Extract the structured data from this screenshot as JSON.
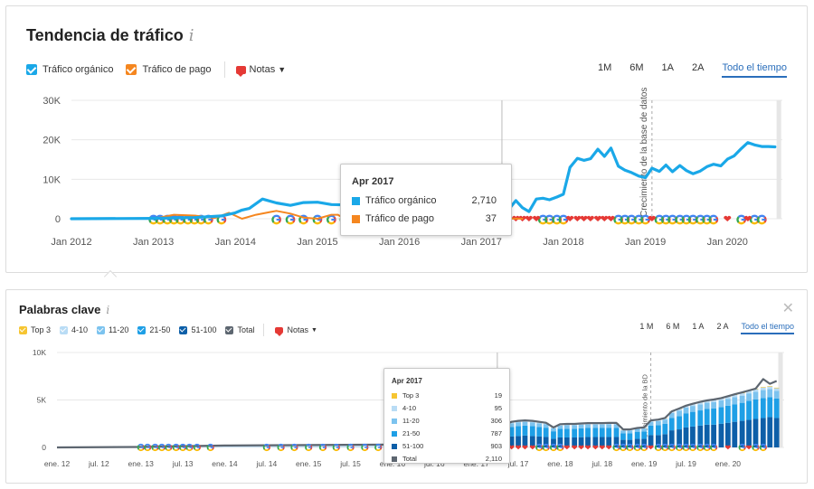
{
  "traffic": {
    "title": "Tendencia de tráfico",
    "info_icon": "info-icon",
    "legend": [
      {
        "label": "Tráfico orgánico",
        "color": "#1aa8e8"
      },
      {
        "label": "Tráfico de pago",
        "color": "#f5861f"
      }
    ],
    "notes_label": "Notas",
    "ranges": [
      "1M",
      "6M",
      "1A",
      "2A",
      "Todo el tiempo"
    ],
    "active_range": "Todo el tiempo",
    "vline_annotation": "Crecimiento de la base de datos",
    "tooltip": {
      "date": "Apr 2017",
      "rows": [
        {
          "label": "Tráfico orgánico",
          "value": "2,710",
          "color": "#1aa8e8"
        },
        {
          "label": "Tráfico de pago",
          "value": "37",
          "color": "#f5861f"
        }
      ]
    }
  },
  "keywords": {
    "title": "Palabras clave",
    "info_icon": "info-icon",
    "close_icon": "close-icon",
    "legend": [
      {
        "label": "Top 3",
        "color": "#f6c531"
      },
      {
        "label": "4-10",
        "color": "#b9dcf5"
      },
      {
        "label": "11-20",
        "color": "#7cc3ef"
      },
      {
        "label": "21-50",
        "color": "#1e9fe6"
      },
      {
        "label": "51-100",
        "color": "#0d5fa8"
      },
      {
        "label": "Total",
        "color": "#5d6670"
      }
    ],
    "notes_label": "Notas",
    "ranges": [
      "1 M",
      "6 M",
      "1 A",
      "2 A",
      "Todo el tiempo"
    ],
    "active_range": "Todo el tiempo",
    "vline_annotation": "Crecimiento de la BD",
    "tooltip": {
      "date": "Apr 2017",
      "rows": [
        {
          "label": "Top 3",
          "value": "19",
          "color": "#f6c531"
        },
        {
          "label": "4-10",
          "value": "95",
          "color": "#b9dcf5"
        },
        {
          "label": "11-20",
          "value": "306",
          "color": "#7cc3ef"
        },
        {
          "label": "21-50",
          "value": "787",
          "color": "#1e9fe6"
        },
        {
          "label": "51-100",
          "value": "903",
          "color": "#0d5fa8"
        },
        {
          "label": "Total",
          "value": "2,110",
          "color": "#5d6670"
        }
      ]
    }
  },
  "chart_data": [
    {
      "type": "line",
      "title": "Tendencia de tráfico",
      "x_ticks": [
        "Jan 2012",
        "Jan 2013",
        "Jan 2014",
        "Jan 2015",
        "Jan 2016",
        "Jan 2017",
        "Jan 2018",
        "Jan 2019",
        "Jan 2020"
      ],
      "y_ticks": [
        "0",
        "10K",
        "20K",
        "30K"
      ],
      "ylim": [
        0,
        30000
      ],
      "xlim": [
        2012.0,
        2020.67
      ],
      "grid": true,
      "legend_placement": "top-left",
      "series": [
        {
          "name": "Tráfico orgánico",
          "color": "#1aa8e8",
          "x": [
            2012.0,
            2013.0,
            2013.5,
            2013.83,
            2014.0,
            2014.08,
            2014.17,
            2014.33,
            2014.5,
            2014.67,
            2014.83,
            2015.0,
            2015.17,
            2015.33,
            2015.5,
            2015.67,
            2015.83,
            2016.0,
            2016.17,
            2016.25,
            2016.33,
            2016.5,
            2016.67,
            2016.83,
            2017.0,
            2017.17,
            2017.25,
            2017.33,
            2017.42,
            2017.5,
            2017.58,
            2017.67,
            2017.75,
            2017.83,
            2017.92,
            2018.0,
            2018.08,
            2018.17,
            2018.25,
            2018.33,
            2018.42,
            2018.5,
            2018.58,
            2018.67,
            2018.75,
            2018.83,
            2018.92,
            2019.0,
            2019.08,
            2019.17,
            2019.25,
            2019.33,
            2019.42,
            2019.5,
            2019.58,
            2019.67,
            2019.75,
            2019.83,
            2019.92,
            2020.0,
            2020.08,
            2020.17,
            2020.25,
            2020.33,
            2020.42,
            2020.5,
            2020.58
          ],
          "values": [
            0,
            100,
            300,
            700,
            1500,
            2200,
            2600,
            5000,
            4000,
            3400,
            4100,
            4200,
            3600,
            3500,
            4200,
            3300,
            3100,
            3200,
            2600,
            2300,
            2700,
            2900,
            2800,
            2600,
            2500,
            2100,
            2710,
            2300,
            4600,
            2800,
            1800,
            5000,
            5200,
            4800,
            5500,
            6200,
            13000,
            15300,
            14800,
            15200,
            17600,
            15800,
            17900,
            13300,
            12300,
            11700,
            10800,
            10400,
            12800,
            12000,
            13600,
            11900,
            13500,
            12200,
            11400,
            12100,
            13200,
            13800,
            13400,
            15100,
            15900,
            17800,
            19300,
            18700,
            18300,
            18300,
            18200
          ]
        },
        {
          "name": "Tráfico de pago",
          "color": "#f5861f",
          "x": [
            2013.0,
            2013.25,
            2013.5,
            2013.75,
            2013.92,
            2014.08,
            2014.25,
            2014.42,
            2014.5,
            2014.67,
            2014.83,
            2015.0,
            2015.17,
            2015.25,
            2015.33,
            2015.42,
            2015.5,
            2015.58,
            2015.75,
            2015.92,
            2016.08,
            2016.25,
            2016.5,
            2016.75,
            2017.0,
            2017.25,
            2017.5
          ],
          "values": [
            0,
            1000,
            800,
            200,
            1500,
            0,
            1000,
            1700,
            2000,
            1300,
            300,
            0,
            1000,
            1000,
            0,
            1000,
            900,
            100,
            300,
            1100,
            200,
            0,
            0,
            0,
            0,
            37,
            0
          ]
        }
      ]
    },
    {
      "type": "bar",
      "stacked": true,
      "title": "Palabras clave",
      "x_ticks": [
        "ene. 12",
        "jul. 12",
        "ene. 13",
        "jul. 13",
        "ene. 14",
        "jul. 14",
        "ene. 15",
        "jul. 15",
        "ene. 16",
        "jul. 16",
        "ene. 17",
        "jul. 17",
        "ene. 18",
        "jul. 18",
        "ene. 19",
        "jul. 19",
        "ene. 20"
      ],
      "y_ticks": [
        "0",
        "5K",
        "10K"
      ],
      "ylim": [
        0,
        10000
      ],
      "xlim": [
        2012.0,
        2020.67
      ],
      "grid": true,
      "legend_placement": "top-left",
      "x": [
        2017.25,
        2017.33,
        2017.42,
        2017.5,
        2017.58,
        2017.67,
        2017.75,
        2017.83,
        2017.92,
        2018.0,
        2018.08,
        2018.17,
        2018.25,
        2018.33,
        2018.42,
        2018.5,
        2018.58,
        2018.67,
        2018.75,
        2018.83,
        2018.92,
        2019.0,
        2019.08,
        2019.17,
        2019.25,
        2019.33,
        2019.42,
        2019.5,
        2019.58,
        2019.67,
        2019.75,
        2019.83,
        2019.92,
        2020.0,
        2020.08,
        2020.17,
        2020.25,
        2020.33,
        2020.42,
        2020.5,
        2020.58
      ],
      "series": [
        {
          "name": "51-100",
          "color": "#0d5fa8",
          "values": [
            903,
            1000,
            1150,
            1200,
            1250,
            1200,
            1150,
            1100,
            900,
            1050,
            1050,
            1050,
            1080,
            1100,
            1100,
            1100,
            1100,
            1100,
            800,
            800,
            900,
            900,
            1300,
            1300,
            1400,
            1800,
            1900,
            2100,
            2200,
            2300,
            2400,
            2400,
            2500,
            2600,
            2700,
            2800,
            2900,
            3000,
            3100,
            3200,
            3100
          ]
        },
        {
          "name": "21-50",
          "color": "#1e9fe6",
          "values": [
            787,
            900,
            1000,
            1050,
            1050,
            1050,
            1000,
            980,
            800,
            900,
            920,
            920,
            930,
            950,
            950,
            950,
            950,
            950,
            700,
            700,
            750,
            780,
            1000,
            1050,
            1100,
            1300,
            1400,
            1500,
            1550,
            1600,
            1650,
            1700,
            1750,
            1800,
            1850,
            1900,
            2000,
            2050,
            2100,
            2100,
            2050
          ]
        },
        {
          "name": "11-20",
          "color": "#7cc3ef",
          "values": [
            306,
            350,
            380,
            400,
            400,
            400,
            390,
            380,
            320,
            350,
            360,
            360,
            370,
            370,
            370,
            370,
            380,
            380,
            280,
            280,
            300,
            300,
            400,
            420,
            440,
            520,
            560,
            600,
            620,
            640,
            660,
            680,
            700,
            720,
            740,
            760,
            800,
            820,
            840,
            840,
            820
          ]
        },
        {
          "name": "4-10",
          "color": "#b9dcf5",
          "values": [
            95,
            110,
            120,
            130,
            130,
            130,
            125,
            120,
            100,
            110,
            115,
            115,
            118,
            120,
            120,
            120,
            122,
            122,
            90,
            90,
            95,
            100,
            130,
            135,
            140,
            170,
            180,
            190,
            200,
            210,
            215,
            220,
            225,
            230,
            240,
            250,
            260,
            270,
            275,
            275,
            270
          ]
        },
        {
          "name": "Top 3",
          "color": "#f6c531",
          "values": [
            19,
            22,
            24,
            26,
            26,
            26,
            25,
            24,
            20,
            22,
            23,
            23,
            24,
            24,
            24,
            24,
            25,
            25,
            18,
            18,
            19,
            20,
            26,
            27,
            28,
            34,
            36,
            38,
            40,
            42,
            43,
            44,
            45,
            46,
            48,
            50,
            52,
            54,
            55,
            55,
            54
          ]
        }
      ],
      "total_line": {
        "name": "Total",
        "color": "#5d6670",
        "x": [
          2012.0,
          2013.0,
          2014.0,
          2015.0,
          2016.0,
          2017.0,
          2017.08,
          2017.17,
          2017.25,
          2017.33,
          2017.42,
          2017.5,
          2017.58,
          2017.67,
          2017.75,
          2017.83,
          2017.92,
          2018.0,
          2018.08,
          2018.17,
          2018.25,
          2018.33,
          2018.42,
          2018.5,
          2018.58,
          2018.67,
          2018.75,
          2018.83,
          2018.92,
          2019.0,
          2019.08,
          2019.17,
          2019.25,
          2019.33,
          2019.42,
          2019.5,
          2019.58,
          2019.67,
          2019.75,
          2019.83,
          2019.92,
          2020.0,
          2020.08,
          2020.17,
          2020.25,
          2020.33,
          2020.42,
          2020.5,
          2020.58
        ],
        "values": [
          0,
          50,
          200,
          250,
          300,
          400,
          500,
          600,
          2110,
          2400,
          2700,
          2800,
          2850,
          2800,
          2700,
          2600,
          2100,
          2450,
          2480,
          2480,
          2520,
          2560,
          2560,
          2560,
          2580,
          2580,
          1900,
          1900,
          2050,
          2100,
          2850,
          2930,
          3100,
          3800,
          4100,
          4400,
          4600,
          4800,
          4950,
          5050,
          5200,
          5400,
          5600,
          5800,
          6000,
          6200,
          7200,
          6700,
          7000
        ]
      }
    }
  ]
}
